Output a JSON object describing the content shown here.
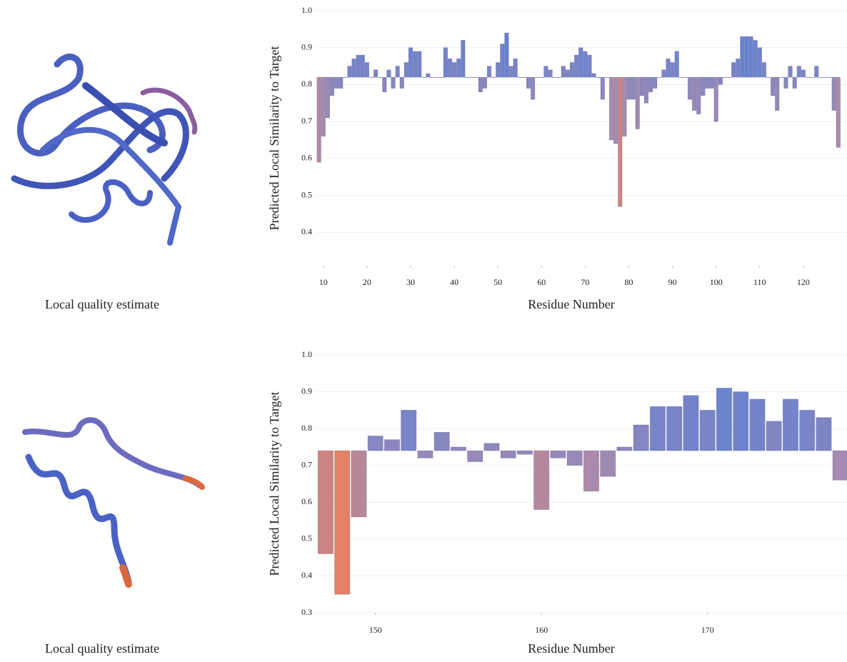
{
  "chart_data": [
    {
      "type": "bar",
      "caption": "Local quality estimate",
      "ylabel": "Predicted Local Similarity to Target",
      "xlabel": "Residue Number",
      "x": [
        9,
        10,
        11,
        12,
        13,
        14,
        15,
        16,
        17,
        18,
        19,
        20,
        21,
        22,
        23,
        24,
        25,
        26,
        27,
        28,
        29,
        30,
        31,
        32,
        33,
        34,
        35,
        36,
        37,
        38,
        39,
        40,
        41,
        42,
        43,
        44,
        45,
        46,
        47,
        48,
        49,
        50,
        51,
        52,
        53,
        54,
        55,
        56,
        57,
        58,
        59,
        60,
        61,
        62,
        63,
        64,
        65,
        66,
        67,
        68,
        69,
        70,
        71,
        72,
        73,
        74,
        75,
        76,
        77,
        78,
        79,
        80,
        81,
        82,
        83,
        84,
        85,
        86,
        87,
        88,
        89,
        90,
        91,
        92,
        93,
        94,
        95,
        96,
        97,
        98,
        99,
        100,
        101,
        102,
        103,
        104,
        105,
        106,
        107,
        108,
        109,
        110,
        111,
        112,
        113,
        114,
        115,
        116,
        117,
        118,
        119,
        120,
        121,
        122,
        123,
        124,
        125,
        126,
        127,
        128
      ],
      "values": [
        0.59,
        0.66,
        0.71,
        0.77,
        0.79,
        0.79,
        0.82,
        0.85,
        0.87,
        0.88,
        0.88,
        0.86,
        0.82,
        0.84,
        0.82,
        0.78,
        0.84,
        0.79,
        0.85,
        0.79,
        0.86,
        0.9,
        0.89,
        0.89,
        0.82,
        0.83,
        0.82,
        0.82,
        0.82,
        0.9,
        0.87,
        0.86,
        0.87,
        0.92,
        0.82,
        0.82,
        0.82,
        0.78,
        0.79,
        0.85,
        0.82,
        0.86,
        0.91,
        0.94,
        0.85,
        0.87,
        0.82,
        0.82,
        0.79,
        0.76,
        0.82,
        0.82,
        0.85,
        0.84,
        0.82,
        0.82,
        0.85,
        0.84,
        0.86,
        0.88,
        0.9,
        0.89,
        0.88,
        0.83,
        0.82,
        0.76,
        0.82,
        0.65,
        0.64,
        0.47,
        0.66,
        0.76,
        0.76,
        0.68,
        0.77,
        0.75,
        0.78,
        0.79,
        0.82,
        0.84,
        0.87,
        0.86,
        0.89,
        0.82,
        0.82,
        0.76,
        0.73,
        0.72,
        0.77,
        0.79,
        0.79,
        0.7,
        0.8,
        0.82,
        0.82,
        0.86,
        0.87,
        0.93,
        0.93,
        0.93,
        0.92,
        0.9,
        0.86,
        0.82,
        0.77,
        0.73,
        0.82,
        0.79,
        0.85,
        0.79,
        0.85,
        0.84,
        0.82,
        0.82,
        0.85,
        0.82,
        0.82,
        0.82,
        0.73,
        0.63
      ],
      "baseline": 0.82,
      "colors": [
        "#ef7f58",
        "#a58bb0",
        "#5a80d8"
      ],
      "xlim": [
        8.4,
        130
      ],
      "xticks": [
        10,
        20,
        30,
        40,
        50,
        60,
        70,
        80,
        90,
        100,
        110,
        120
      ],
      "ylim": [
        0.31,
        1.0
      ],
      "yticks": [
        0.4,
        0.5,
        0.6,
        0.7,
        0.8,
        0.9,
        {
          "value": 1,
          "label": "1.0"
        }
      ],
      "grid": true
    },
    {
      "type": "bar",
      "caption": "Local quality estimate",
      "ylabel": "Predicted Local Similarity to Target",
      "xlabel": "Residue Number",
      "x": [
        147,
        148,
        149,
        150,
        151,
        152,
        153,
        154,
        155,
        156,
        157,
        158,
        159,
        160,
        161,
        162,
        163,
        164,
        165,
        166,
        167,
        168,
        169,
        170,
        171,
        172,
        173,
        174,
        175,
        176,
        177,
        178
      ],
      "values": [
        0.46,
        0.35,
        0.56,
        0.78,
        0.77,
        0.85,
        0.72,
        0.79,
        0.75,
        0.71,
        0.76,
        0.72,
        0.73,
        0.58,
        0.72,
        0.7,
        0.63,
        0.67,
        0.75,
        0.81,
        0.86,
        0.86,
        0.89,
        0.85,
        0.91,
        0.9,
        0.88,
        0.82,
        0.88,
        0.85,
        0.83,
        0.66
      ],
      "baseline": 0.74,
      "colors": [
        "#ef7f58",
        "#a58bb0",
        "#5a80d8"
      ],
      "xlim": [
        146.4,
        178.4
      ],
      "xticks": [
        150,
        160,
        170
      ],
      "ylim": [
        0.3,
        1.0
      ],
      "yticks": [
        0.3,
        0.4,
        0.5,
        0.6,
        0.7,
        0.8,
        0.9,
        {
          "value": 1,
          "label": "1.0"
        }
      ],
      "grid": true
    }
  ]
}
